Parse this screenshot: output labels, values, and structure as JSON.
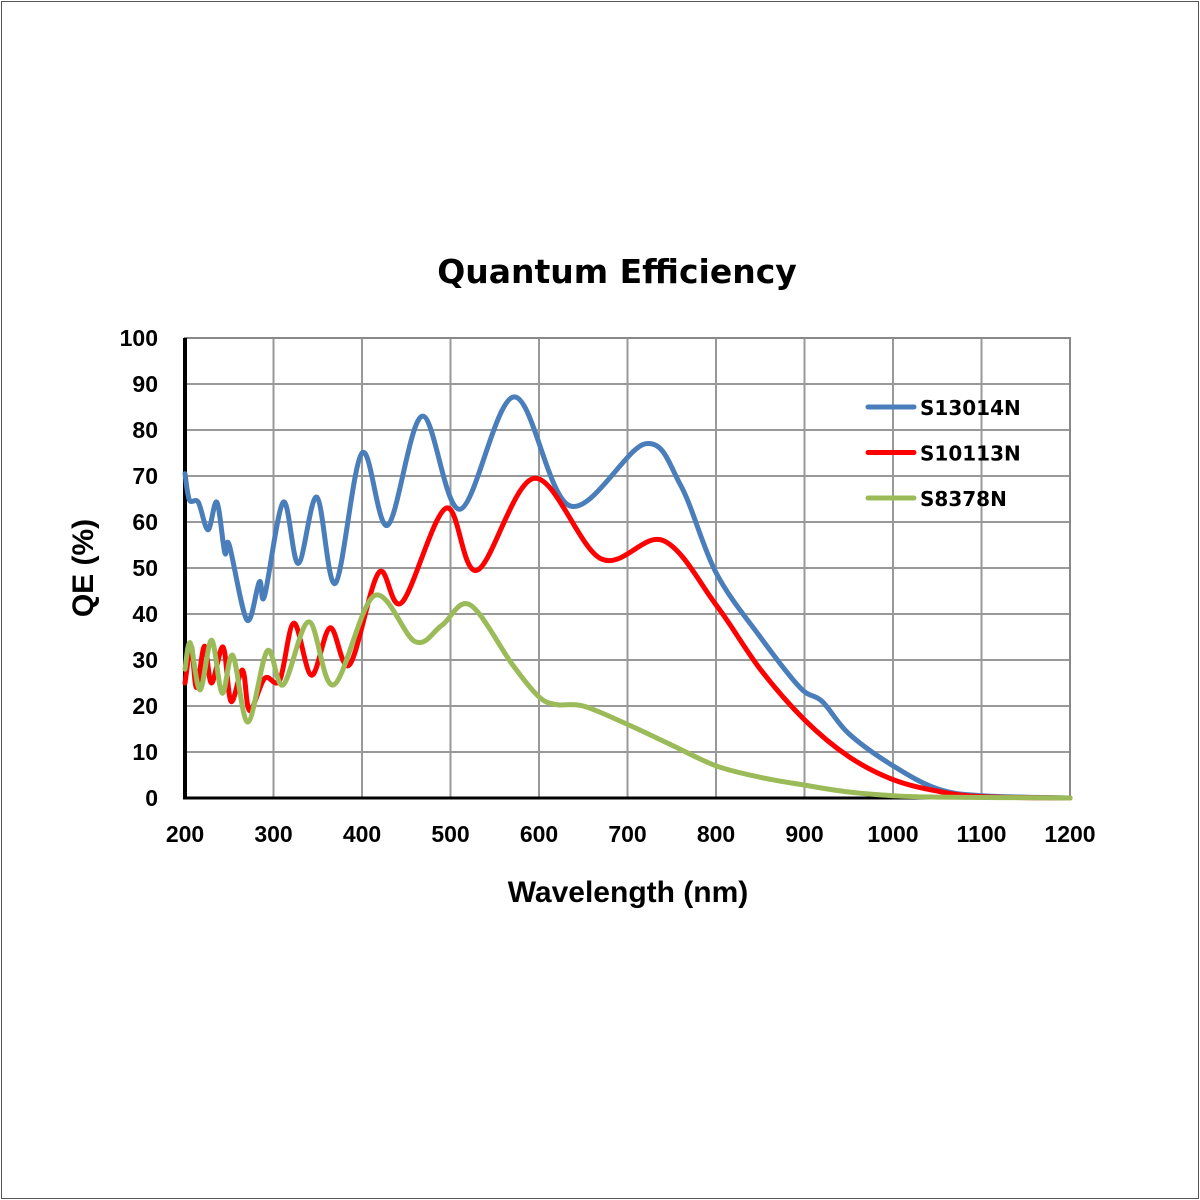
{
  "chart_data": {
    "type": "line",
    "title": "Quantum Efficiency",
    "xlabel": "Wavelength (nm)",
    "ylabel": "QE (%)",
    "xlim": [
      200,
      1200
    ],
    "ylim": [
      0,
      100
    ],
    "xticks": [
      200,
      300,
      400,
      500,
      600,
      700,
      800,
      900,
      1000,
      1100,
      1200
    ],
    "yticks": [
      0,
      10,
      20,
      30,
      40,
      50,
      60,
      70,
      80,
      90,
      100
    ],
    "grid": true,
    "legend_position": "top-right",
    "series": [
      {
        "name": "S13014N",
        "color": "#4a7ebb",
        "x": [
          200,
          205,
          215,
          226,
          236,
          245,
          250,
          270,
          284,
          290,
          311,
          328,
          349,
          370,
          400,
          429,
          468,
          511,
          572,
          635,
          720,
          760,
          800,
          850,
          895,
          920,
          950,
          1000,
          1050,
          1100,
          1200
        ],
        "y": [
          70.5,
          64.8,
          64.3,
          58.3,
          64.3,
          53.3,
          55,
          38.7,
          47,
          44,
          64.3,
          51,
          65.4,
          46.7,
          75,
          59.3,
          83,
          62.8,
          87.2,
          63.5,
          77,
          68,
          49,
          35,
          24,
          21,
          14,
          7,
          2,
          0.5,
          0
        ]
      },
      {
        "name": "S10113N",
        "color": "#ff0000",
        "x": [
          200,
          207,
          213,
          222,
          230,
          243,
          252,
          265,
          273,
          290,
          307,
          323,
          343,
          364,
          386,
          419,
          445,
          495,
          530,
          595,
          670,
          740,
          800,
          850,
          900,
          950,
          1000,
          1050,
          1100,
          1200
        ],
        "y": [
          25,
          33,
          24,
          33,
          25,
          32.8,
          21,
          27.8,
          19,
          26,
          25.6,
          38,
          26.7,
          37,
          29,
          49,
          42.5,
          63,
          49.5,
          69.5,
          52,
          56,
          42,
          28,
          17,
          9,
          4,
          1.5,
          0.3,
          0
        ]
      },
      {
        "name": "S8378N",
        "color": "#9bbb59",
        "x": [
          200,
          206,
          217,
          230,
          242,
          254,
          271,
          293,
          311,
          340,
          368,
          414,
          460,
          490,
          522,
          570,
          600,
          620,
          650,
          700,
          750,
          800,
          850,
          900,
          950,
          1000,
          1050,
          1200
        ],
        "y": [
          28,
          33.7,
          23.5,
          34.3,
          22.8,
          31,
          16.5,
          32,
          24.6,
          38.3,
          24.6,
          44,
          34,
          37.5,
          42,
          29,
          22,
          20.3,
          20,
          16,
          11.5,
          7,
          4.5,
          2.8,
          1.3,
          0.5,
          0.2,
          0
        ]
      }
    ]
  }
}
